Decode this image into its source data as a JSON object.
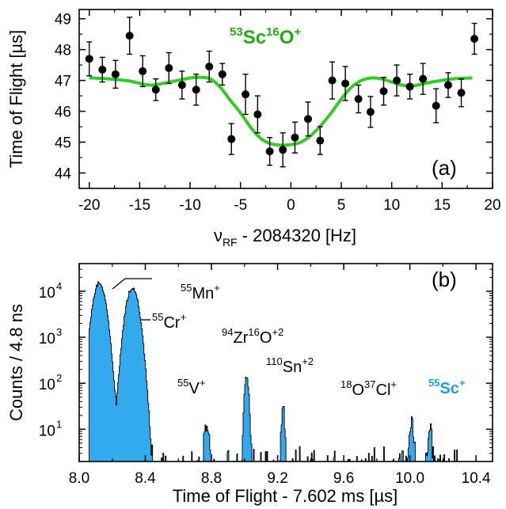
{
  "chart_data": [
    {
      "panel_label": "(a)",
      "type": "scatter",
      "annotation": {
        "mass": "53",
        "element": "Sc",
        "mass2": "16",
        "element2": "O",
        "charge": "+"
      },
      "xlabel_prefix": "ν",
      "xlabel_sub": "RF",
      "xlabel_rest": " - 2084320 [Hz]",
      "ylabel": "Time of Flight [µs]",
      "xlim": [
        -21,
        20
      ],
      "ylim": [
        43.5,
        49.3
      ],
      "xticks": [
        -20,
        -15,
        -10,
        -5,
        0,
        5,
        10,
        15,
        20
      ],
      "yticks": [
        44,
        45,
        46,
        47,
        48,
        49
      ],
      "colors": {
        "fit": "#33cc22",
        "points": "#000000"
      },
      "points": {
        "x": [
          -20,
          -18.7,
          -17.4,
          -16,
          -14.7,
          -13.4,
          -12.1,
          -10.8,
          -9.4,
          -8.1,
          -6.8,
          -5.9,
          -4.5,
          -3.3,
          -2.1,
          -0.8,
          0.4,
          1.7,
          2.9,
          4.1,
          5.4,
          6.7,
          7.9,
          9.2,
          10.5,
          11.8,
          13.1,
          14.4,
          15.6,
          16.9,
          18.2
        ],
        "y": [
          47.7,
          47.35,
          47.2,
          48.45,
          47.3,
          46.7,
          47.4,
          46.85,
          46.7,
          47.45,
          47.2,
          45.1,
          46.55,
          45.9,
          44.7,
          44.75,
          45.15,
          45.75,
          45.05,
          47.0,
          46.9,
          46.4,
          45.98,
          46.65,
          47.0,
          46.8,
          47.05,
          46.18,
          46.85,
          46.6,
          48.35
        ],
        "err": [
          0.55,
          0.4,
          0.45,
          0.6,
          0.5,
          0.35,
          0.5,
          0.45,
          0.5,
          0.5,
          0.35,
          0.5,
          0.65,
          0.6,
          0.45,
          0.55,
          0.5,
          0.55,
          0.45,
          0.6,
          0.55,
          0.45,
          0.5,
          0.45,
          0.5,
          0.4,
          0.5,
          0.55,
          0.4,
          0.45,
          0.5
        ]
      },
      "fit": {
        "x": [
          -20,
          -18,
          -16,
          -14,
          -12,
          -10,
          -9,
          -8,
          -7,
          -6,
          -5,
          -4,
          -3,
          -2,
          -1,
          0,
          1,
          2,
          3,
          4,
          5,
          6,
          7,
          8,
          9,
          10,
          11,
          12,
          13,
          14,
          16,
          18
        ],
        "y": [
          47.08,
          47.05,
          46.98,
          46.85,
          46.95,
          47.08,
          47.1,
          47.05,
          46.78,
          46.35,
          45.95,
          45.48,
          45.12,
          44.95,
          44.9,
          44.92,
          45.0,
          45.22,
          45.55,
          45.95,
          46.4,
          46.78,
          47.0,
          47.08,
          47.05,
          46.95,
          46.85,
          46.82,
          46.88,
          46.95,
          47.05,
          47.08
        ]
      }
    },
    {
      "panel_label": "(b)",
      "type": "area",
      "xlabel": "Time of Flight - 7.602 ms [µs]",
      "ylabel": "Counts / 4.8 ns",
      "log_y": true,
      "xlim": [
        8.0,
        10.5
      ],
      "ylim_log10": [
        0.3,
        4.6
      ],
      "xticks": [
        8.0,
        8.4,
        8.8,
        9.2,
        9.6,
        10.0,
        10.4
      ],
      "xtick_labels": [
        "8.0",
        "8.4",
        "8.8",
        "9.2",
        "9.6",
        "10.0",
        "10.4"
      ],
      "yticks": [
        10,
        100,
        1000,
        10000
      ],
      "colors": {
        "fill": "#33aaee",
        "outline": "#000000",
        "highlight": "#2299ee"
      },
      "peaks": [
        {
          "center": 8.12,
          "height": 15000,
          "width": 0.028,
          "label_mass": "55",
          "label_elem": "Mn",
          "label_mass2": "",
          "label_elem2": "",
          "label_charge": "+"
        },
        {
          "center": 8.32,
          "height": 12000,
          "width": 0.028,
          "label_mass": "55",
          "label_elem": "Cr",
          "label_mass2": "",
          "label_elem2": "",
          "label_charge": "+"
        },
        {
          "center": 8.77,
          "height": 13,
          "width": 0.012,
          "label_mass": "55",
          "label_elem": "V",
          "label_mass2": "",
          "label_elem2": "",
          "label_charge": "+"
        },
        {
          "center": 9.01,
          "height": 140,
          "width": 0.01,
          "label_mass": "94",
          "label_elem": "Zr",
          "label_mass2": "16",
          "label_elem2": "O",
          "label_charge": "+2"
        },
        {
          "center": 9.23,
          "height": 30,
          "width": 0.008,
          "label_mass": "110",
          "label_elem": "Sn",
          "label_mass2": "",
          "label_elem2": "",
          "label_charge": "+2"
        },
        {
          "center": 10.01,
          "height": 12,
          "width": 0.012,
          "label_mass": "18",
          "label_elem": "O",
          "label_mass2": "37",
          "label_elem2": "Cl",
          "label_charge": "+"
        },
        {
          "center": 10.12,
          "height": 8,
          "width": 0.01,
          "label_mass": "55",
          "label_elem": "Sc",
          "label_mass2": "",
          "label_elem2": "",
          "label_charge": "+"
        }
      ]
    }
  ]
}
